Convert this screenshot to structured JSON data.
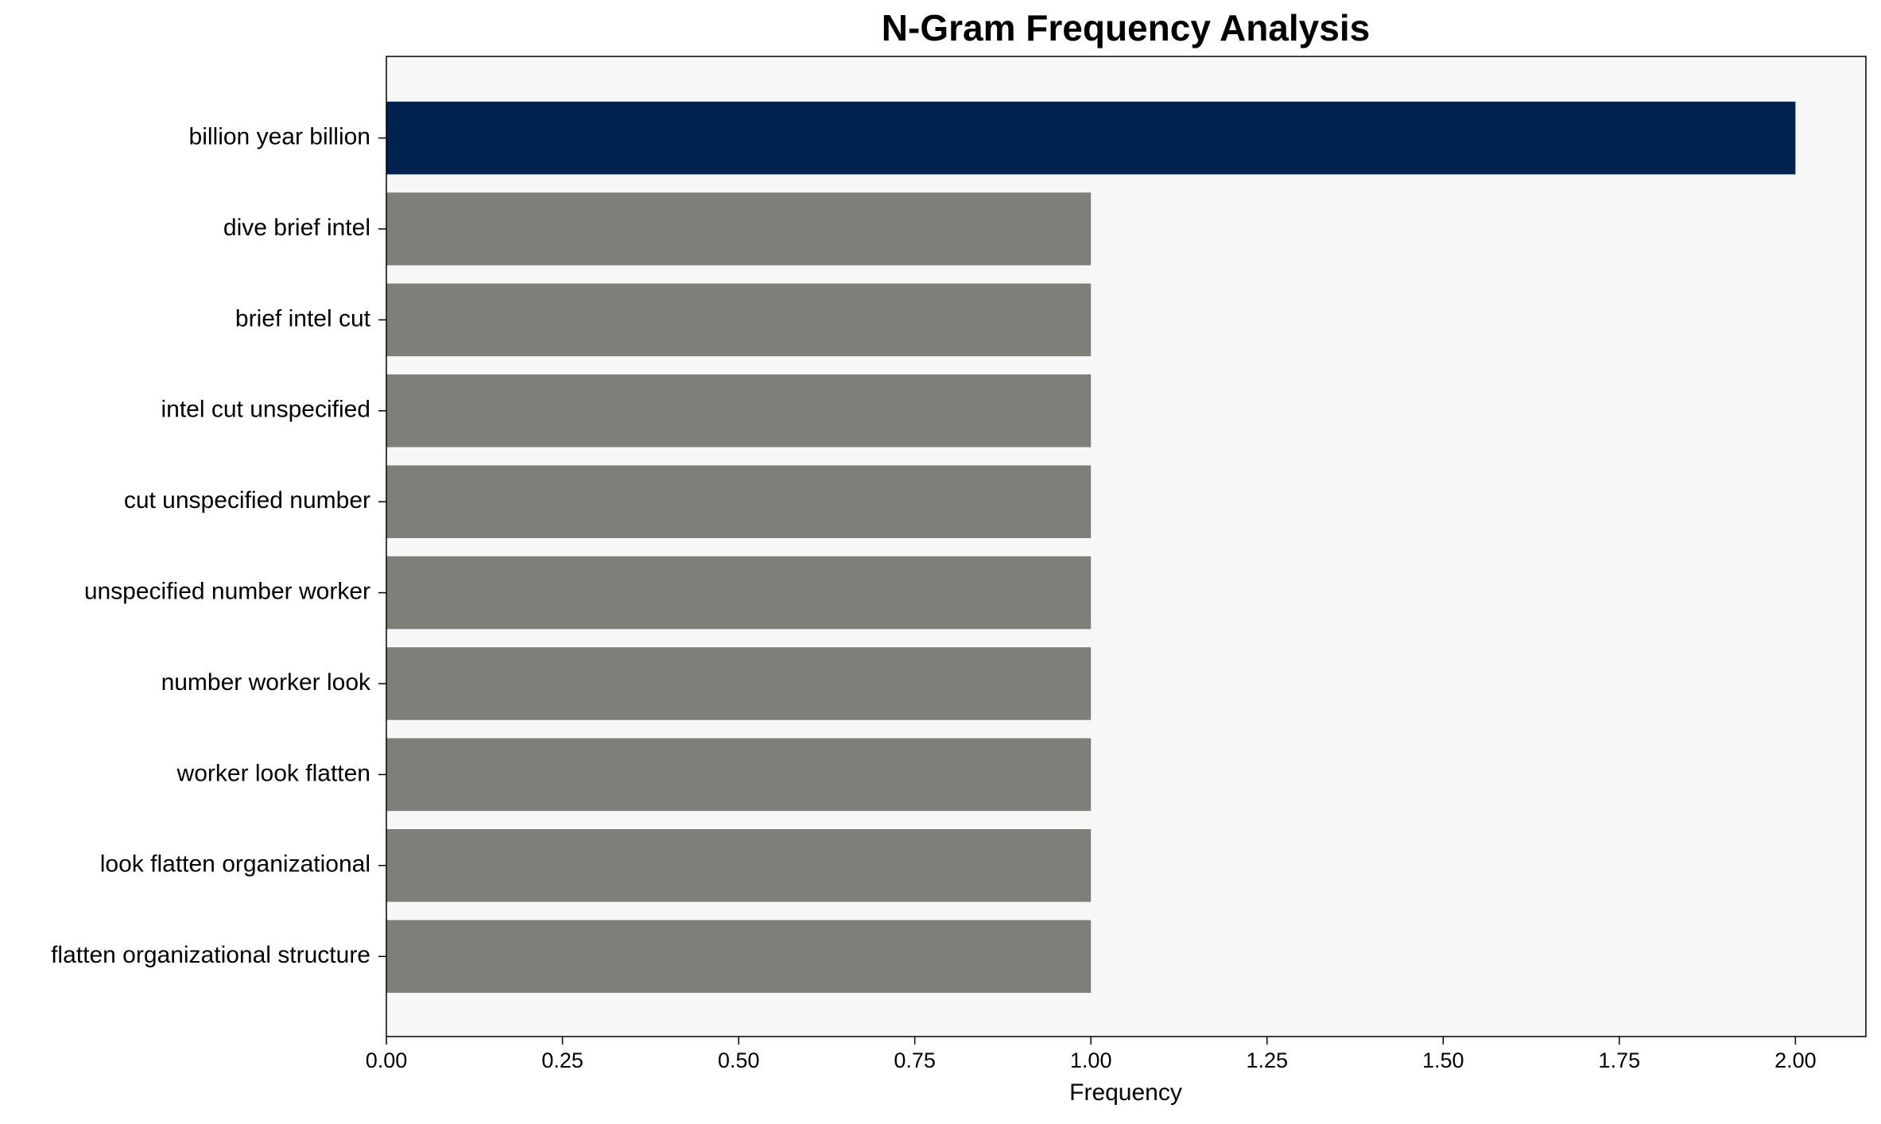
{
  "chart_data": {
    "type": "barh",
    "title": "N-Gram Frequency Analysis",
    "x_label": "Frequency",
    "categories": [
      "billion year billion",
      "dive brief intel",
      "brief intel cut",
      "intel cut unspecified",
      "cut unspecified number",
      "unspecified number worker",
      "number worker look",
      "worker look flatten",
      "look flatten organizational",
      "flatten organizational structure"
    ],
    "values": [
      2,
      1,
      1,
      1,
      1,
      1,
      1,
      1,
      1,
      1
    ],
    "colors": [
      "#00224e",
      "#7f7f7a",
      "#7f7f7a",
      "#7f7f7a",
      "#7f7f7a",
      "#7f7f7a",
      "#7f7f7a",
      "#7f7f7a",
      "#7f7f7a",
      "#7f7f7a"
    ],
    "xlim": [
      0,
      2.1
    ],
    "xticks": [
      {
        "value": 0,
        "label": "0.00"
      },
      {
        "value": 0.25,
        "label": "0.25"
      },
      {
        "value": 0.5,
        "label": "0.50"
      },
      {
        "value": 0.75,
        "label": "0.75"
      },
      {
        "value": 1,
        "label": "1.00"
      },
      {
        "value": 1.25,
        "label": "1.25"
      },
      {
        "value": 1.5,
        "label": "1.50"
      },
      {
        "value": 1.75,
        "label": "1.75"
      },
      {
        "value": 2,
        "label": "2.00"
      }
    ]
  }
}
